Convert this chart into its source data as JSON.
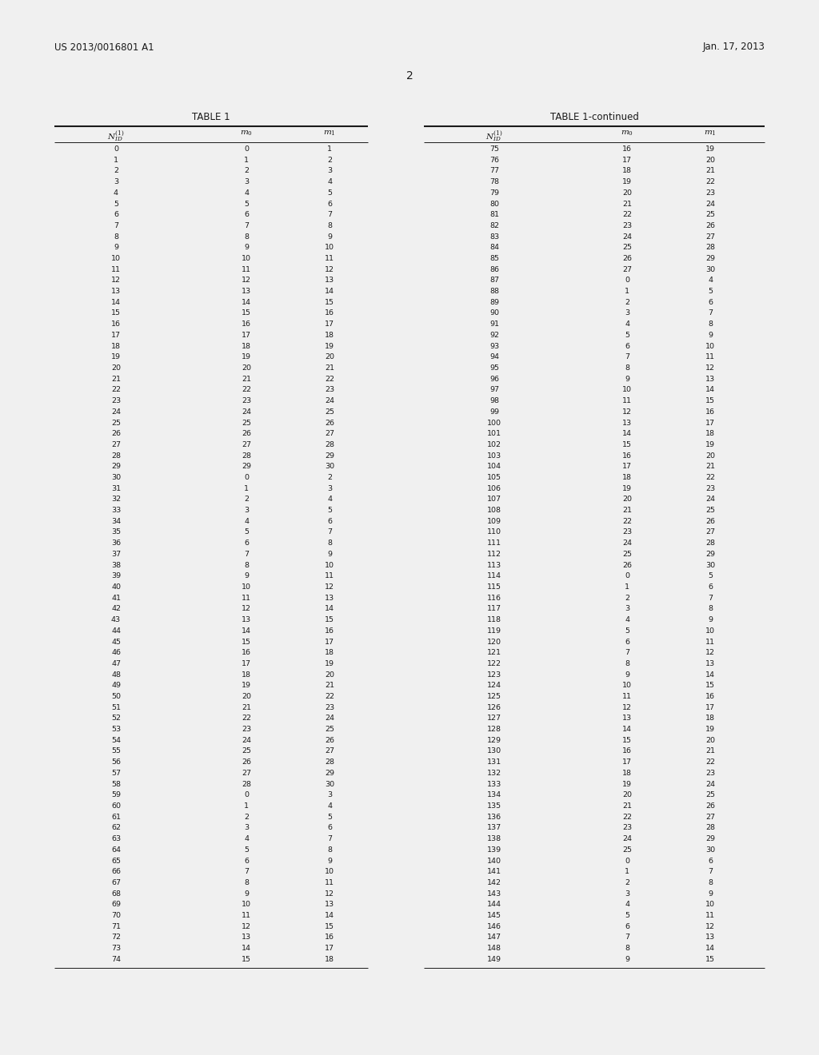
{
  "header_left": "US 2013/0016801 A1",
  "header_right": "Jan. 17, 2013",
  "page_number": "2",
  "table1_title": "TABLE 1",
  "table1_continued_title": "TABLE 1-continued",
  "table1_data": [
    [
      0,
      0,
      1
    ],
    [
      1,
      1,
      2
    ],
    [
      2,
      2,
      3
    ],
    [
      3,
      3,
      4
    ],
    [
      4,
      4,
      5
    ],
    [
      5,
      5,
      6
    ],
    [
      6,
      6,
      7
    ],
    [
      7,
      7,
      8
    ],
    [
      8,
      8,
      9
    ],
    [
      9,
      9,
      10
    ],
    [
      10,
      10,
      11
    ],
    [
      11,
      11,
      12
    ],
    [
      12,
      12,
      13
    ],
    [
      13,
      13,
      14
    ],
    [
      14,
      14,
      15
    ],
    [
      15,
      15,
      16
    ],
    [
      16,
      16,
      17
    ],
    [
      17,
      17,
      18
    ],
    [
      18,
      18,
      19
    ],
    [
      19,
      19,
      20
    ],
    [
      20,
      20,
      21
    ],
    [
      21,
      21,
      22
    ],
    [
      22,
      22,
      23
    ],
    [
      23,
      23,
      24
    ],
    [
      24,
      24,
      25
    ],
    [
      25,
      25,
      26
    ],
    [
      26,
      26,
      27
    ],
    [
      27,
      27,
      28
    ],
    [
      28,
      28,
      29
    ],
    [
      29,
      29,
      30
    ],
    [
      30,
      0,
      2
    ],
    [
      31,
      1,
      3
    ],
    [
      32,
      2,
      4
    ],
    [
      33,
      3,
      5
    ],
    [
      34,
      4,
      6
    ],
    [
      35,
      5,
      7
    ],
    [
      36,
      6,
      8
    ],
    [
      37,
      7,
      9
    ],
    [
      38,
      8,
      10
    ],
    [
      39,
      9,
      11
    ],
    [
      40,
      10,
      12
    ],
    [
      41,
      11,
      13
    ],
    [
      42,
      12,
      14
    ],
    [
      43,
      13,
      15
    ],
    [
      44,
      14,
      16
    ],
    [
      45,
      15,
      17
    ],
    [
      46,
      16,
      18
    ],
    [
      47,
      17,
      19
    ],
    [
      48,
      18,
      20
    ],
    [
      49,
      19,
      21
    ],
    [
      50,
      20,
      22
    ],
    [
      51,
      21,
      23
    ],
    [
      52,
      22,
      24
    ],
    [
      53,
      23,
      25
    ],
    [
      54,
      24,
      26
    ],
    [
      55,
      25,
      27
    ],
    [
      56,
      26,
      28
    ],
    [
      57,
      27,
      29
    ],
    [
      58,
      28,
      30
    ],
    [
      59,
      0,
      3
    ],
    [
      60,
      1,
      4
    ],
    [
      61,
      2,
      5
    ],
    [
      62,
      3,
      6
    ],
    [
      63,
      4,
      7
    ],
    [
      64,
      5,
      8
    ],
    [
      65,
      6,
      9
    ],
    [
      66,
      7,
      10
    ],
    [
      67,
      8,
      11
    ],
    [
      68,
      9,
      12
    ],
    [
      69,
      10,
      13
    ],
    [
      70,
      11,
      14
    ],
    [
      71,
      12,
      15
    ],
    [
      72,
      13,
      16
    ],
    [
      73,
      14,
      17
    ],
    [
      74,
      15,
      18
    ]
  ],
  "table2_data": [
    [
      75,
      16,
      19
    ],
    [
      76,
      17,
      20
    ],
    [
      77,
      18,
      21
    ],
    [
      78,
      19,
      22
    ],
    [
      79,
      20,
      23
    ],
    [
      80,
      21,
      24
    ],
    [
      81,
      22,
      25
    ],
    [
      82,
      23,
      26
    ],
    [
      83,
      24,
      27
    ],
    [
      84,
      25,
      28
    ],
    [
      85,
      26,
      29
    ],
    [
      86,
      27,
      30
    ],
    [
      87,
      0,
      4
    ],
    [
      88,
      1,
      5
    ],
    [
      89,
      2,
      6
    ],
    [
      90,
      3,
      7
    ],
    [
      91,
      4,
      8
    ],
    [
      92,
      5,
      9
    ],
    [
      93,
      6,
      10
    ],
    [
      94,
      7,
      11
    ],
    [
      95,
      8,
      12
    ],
    [
      96,
      9,
      13
    ],
    [
      97,
      10,
      14
    ],
    [
      98,
      11,
      15
    ],
    [
      99,
      12,
      16
    ],
    [
      100,
      13,
      17
    ],
    [
      101,
      14,
      18
    ],
    [
      102,
      15,
      19
    ],
    [
      103,
      16,
      20
    ],
    [
      104,
      17,
      21
    ],
    [
      105,
      18,
      22
    ],
    [
      106,
      19,
      23
    ],
    [
      107,
      20,
      24
    ],
    [
      108,
      21,
      25
    ],
    [
      109,
      22,
      26
    ],
    [
      110,
      23,
      27
    ],
    [
      111,
      24,
      28
    ],
    [
      112,
      25,
      29
    ],
    [
      113,
      26,
      30
    ],
    [
      114,
      0,
      5
    ],
    [
      115,
      1,
      6
    ],
    [
      116,
      2,
      7
    ],
    [
      117,
      3,
      8
    ],
    [
      118,
      4,
      9
    ],
    [
      119,
      5,
      10
    ],
    [
      120,
      6,
      11
    ],
    [
      121,
      7,
      12
    ],
    [
      122,
      8,
      13
    ],
    [
      123,
      9,
      14
    ],
    [
      124,
      10,
      15
    ],
    [
      125,
      11,
      16
    ],
    [
      126,
      12,
      17
    ],
    [
      127,
      13,
      18
    ],
    [
      128,
      14,
      19
    ],
    [
      129,
      15,
      20
    ],
    [
      130,
      16,
      21
    ],
    [
      131,
      17,
      22
    ],
    [
      132,
      18,
      23
    ],
    [
      133,
      19,
      24
    ],
    [
      134,
      20,
      25
    ],
    [
      135,
      21,
      26
    ],
    [
      136,
      22,
      27
    ],
    [
      137,
      23,
      28
    ],
    [
      138,
      24,
      29
    ],
    [
      139,
      25,
      30
    ],
    [
      140,
      0,
      6
    ],
    [
      141,
      1,
      7
    ],
    [
      142,
      2,
      8
    ],
    [
      143,
      3,
      9
    ],
    [
      144,
      4,
      10
    ],
    [
      145,
      5,
      11
    ],
    [
      146,
      6,
      12
    ],
    [
      147,
      7,
      13
    ],
    [
      148,
      8,
      14
    ],
    [
      149,
      9,
      15
    ]
  ],
  "bg_color": "#f0f0f0",
  "page_bg": "#f0f0f0",
  "text_color": "#1a1a1a",
  "font_size_header": 8.5,
  "font_size_table_data": 6.8,
  "font_size_table_header": 7.5,
  "font_size_title": 8.5,
  "font_size_page": 10
}
